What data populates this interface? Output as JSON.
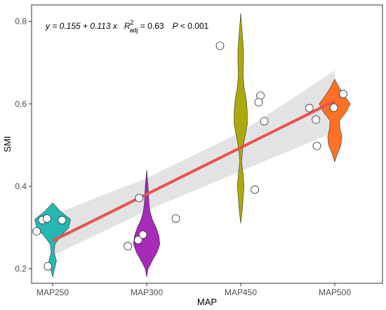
{
  "chart_data": {
    "type": "violin",
    "xlabel": "MAP",
    "ylabel": "SMI",
    "categories": [
      "MAP250",
      "MAP300",
      "MAP450",
      "MAP500"
    ],
    "ylim": [
      0.165,
      0.84
    ],
    "y_ticks": [
      0.2,
      0.4,
      0.6,
      0.8
    ],
    "y_tick_labels": [
      "0.2",
      "0.4",
      "0.6",
      "0.8"
    ],
    "grid": false,
    "colors": {
      "MAP250": "#1ab5b0",
      "MAP300": "#a020b4",
      "MAP450": "#a8a400",
      "MAP500": "#ff6a1a",
      "regression_line": "#e85252",
      "confidence_band": "#d9d9d9"
    },
    "violins": [
      {
        "category": "MAP250",
        "profile": [
          [
            0.18,
            0.0
          ],
          [
            0.2,
            0.04
          ],
          [
            0.22,
            0.08
          ],
          [
            0.24,
            0.03
          ],
          [
            0.26,
            0.05
          ],
          [
            0.28,
            0.18
          ],
          [
            0.3,
            0.34
          ],
          [
            0.32,
            0.38
          ],
          [
            0.34,
            0.16
          ],
          [
            0.36,
            0.0
          ]
        ]
      },
      {
        "category": "MAP300",
        "profile": [
          [
            0.18,
            0.0
          ],
          [
            0.2,
            0.03
          ],
          [
            0.22,
            0.12
          ],
          [
            0.24,
            0.22
          ],
          [
            0.26,
            0.28
          ],
          [
            0.28,
            0.26
          ],
          [
            0.3,
            0.2
          ],
          [
            0.32,
            0.12
          ],
          [
            0.34,
            0.07
          ],
          [
            0.36,
            0.05
          ],
          [
            0.38,
            0.04
          ],
          [
            0.4,
            0.03
          ],
          [
            0.42,
            0.015
          ],
          [
            0.44,
            0.0
          ]
        ]
      },
      {
        "category": "MAP450",
        "profile": [
          [
            0.31,
            0.0
          ],
          [
            0.34,
            0.03
          ],
          [
            0.37,
            0.05
          ],
          [
            0.4,
            0.07
          ],
          [
            0.43,
            0.05
          ],
          [
            0.46,
            0.02
          ],
          [
            0.49,
            0.04
          ],
          [
            0.52,
            0.09
          ],
          [
            0.55,
            0.14
          ],
          [
            0.58,
            0.14
          ],
          [
            0.61,
            0.12
          ],
          [
            0.64,
            0.07
          ],
          [
            0.67,
            0.05
          ],
          [
            0.7,
            0.06
          ],
          [
            0.73,
            0.06
          ],
          [
            0.76,
            0.04
          ],
          [
            0.79,
            0.02
          ],
          [
            0.82,
            0.0
          ]
        ]
      },
      {
        "category": "MAP500",
        "profile": [
          [
            0.46,
            0.0
          ],
          [
            0.48,
            0.06
          ],
          [
            0.5,
            0.13
          ],
          [
            0.52,
            0.15
          ],
          [
            0.54,
            0.11
          ],
          [
            0.56,
            0.1
          ],
          [
            0.58,
            0.24
          ],
          [
            0.6,
            0.33
          ],
          [
            0.62,
            0.2
          ],
          [
            0.64,
            0.09
          ],
          [
            0.66,
            0.0
          ]
        ]
      }
    ],
    "points": [
      {
        "category": "MAP250",
        "x_offset": -0.17,
        "y": 0.291
      },
      {
        "category": "MAP250",
        "x_offset": -0.11,
        "y": 0.318
      },
      {
        "category": "MAP250",
        "x_offset": -0.06,
        "y": 0.322
      },
      {
        "category": "MAP250",
        "x_offset": 0.1,
        "y": 0.318
      },
      {
        "category": "MAP250",
        "x_offset": -0.05,
        "y": 0.206
      },
      {
        "category": "MAP300",
        "x_offset": -0.2,
        "y": 0.255
      },
      {
        "category": "MAP300",
        "x_offset": -0.09,
        "y": 0.27
      },
      {
        "category": "MAP300",
        "x_offset": -0.04,
        "y": 0.283
      },
      {
        "category": "MAP300",
        "x_offset": -0.08,
        "y": 0.372
      },
      {
        "category": "MAP300",
        "x_offset": 0.31,
        "y": 0.322
      },
      {
        "category": "MAP450",
        "x_offset": -0.22,
        "y": 0.741
      },
      {
        "category": "MAP450",
        "x_offset": 0.21,
        "y": 0.62
      },
      {
        "category": "MAP450",
        "x_offset": 0.19,
        "y": 0.604
      },
      {
        "category": "MAP450",
        "x_offset": 0.25,
        "y": 0.558
      },
      {
        "category": "MAP450",
        "x_offset": 0.15,
        "y": 0.392
      },
      {
        "category": "MAP500",
        "x_offset": -0.27,
        "y": 0.59
      },
      {
        "category": "MAP500",
        "x_offset": -0.2,
        "y": 0.562
      },
      {
        "category": "MAP500",
        "x_offset": -0.01,
        "y": 0.591
      },
      {
        "category": "MAP500",
        "x_offset": 0.09,
        "y": 0.624
      },
      {
        "category": "MAP500",
        "x_offset": -0.19,
        "y": 0.498
      }
    ],
    "regression": {
      "intercept": 0.155,
      "slope": 0.113,
      "x_start": 1,
      "x_end": 4,
      "band": [
        [
          1,
          0.232,
          0.331
        ],
        [
          2,
          0.341,
          0.42
        ],
        [
          3,
          0.437,
          0.531
        ],
        [
          4,
          0.532,
          0.681
        ]
      ]
    },
    "annotation": {
      "equation": "y = 0.155 + 0.113 x",
      "r2_label": "R",
      "r2_superscript": "2",
      "r2_subscript": "adj",
      "r2_value": " = 0.63",
      "p_label": "P",
      "p_value": " < 0.001"
    }
  }
}
